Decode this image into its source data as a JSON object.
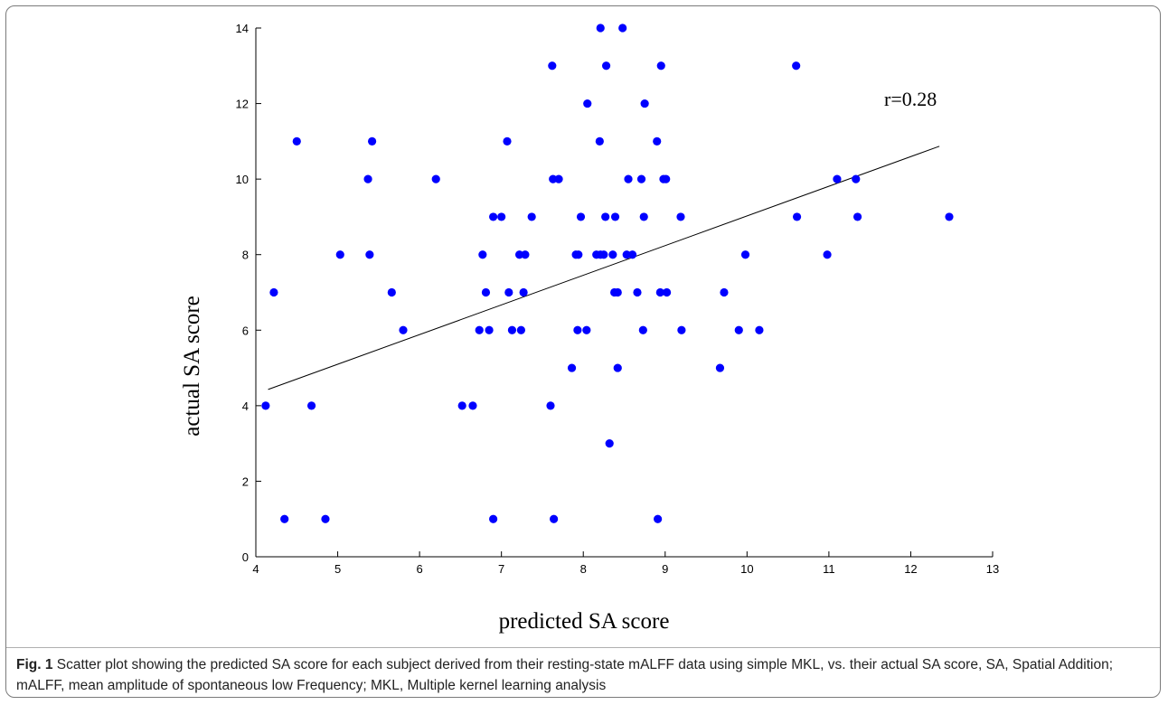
{
  "chart_data": {
    "type": "scatter",
    "xlabel": "predicted SA score",
    "ylabel": "actual SA score",
    "xlim": [
      4,
      13
    ],
    "ylim": [
      0,
      14
    ],
    "xticks": [
      "4",
      "5",
      "6",
      "7",
      "8",
      "9",
      "10",
      "11",
      "12",
      "13"
    ],
    "yticks": [
      "0",
      "2",
      "4",
      "6",
      "8",
      "10",
      "12",
      "14"
    ],
    "annotation": "r=0.28",
    "point_color": "#0000ff",
    "fit_line": {
      "x": [
        4.15,
        12.35
      ],
      "y": [
        4.43,
        10.87
      ]
    },
    "points": [
      [
        4.12,
        4
      ],
      [
        4.22,
        7
      ],
      [
        4.35,
        1
      ],
      [
        4.5,
        11
      ],
      [
        4.68,
        4
      ],
      [
        4.85,
        1
      ],
      [
        5.03,
        8
      ],
      [
        5.37,
        10
      ],
      [
        5.39,
        8
      ],
      [
        5.42,
        11
      ],
      [
        5.66,
        7
      ],
      [
        5.8,
        6
      ],
      [
        6.2,
        10
      ],
      [
        6.52,
        4
      ],
      [
        6.65,
        4
      ],
      [
        6.73,
        6
      ],
      [
        6.77,
        8
      ],
      [
        6.81,
        7
      ],
      [
        6.85,
        6
      ],
      [
        6.9,
        9
      ],
      [
        6.9,
        1
      ],
      [
        7.0,
        9
      ],
      [
        7.07,
        11
      ],
      [
        7.09,
        7
      ],
      [
        7.13,
        6
      ],
      [
        7.22,
        8
      ],
      [
        7.24,
        6
      ],
      [
        7.27,
        7
      ],
      [
        7.29,
        8
      ],
      [
        7.37,
        9
      ],
      [
        7.6,
        4
      ],
      [
        7.62,
        13
      ],
      [
        7.63,
        10
      ],
      [
        7.64,
        1
      ],
      [
        7.7,
        10
      ],
      [
        7.86,
        5
      ],
      [
        7.91,
        8
      ],
      [
        7.93,
        6
      ],
      [
        7.94,
        8
      ],
      [
        7.97,
        9
      ],
      [
        8.04,
        6
      ],
      [
        8.05,
        12
      ],
      [
        8.16,
        8
      ],
      [
        8.2,
        11
      ],
      [
        8.21,
        14
      ],
      [
        8.21,
        8
      ],
      [
        8.25,
        8
      ],
      [
        8.27,
        9
      ],
      [
        8.28,
        13
      ],
      [
        8.32,
        3
      ],
      [
        8.36,
        8
      ],
      [
        8.38,
        7
      ],
      [
        8.39,
        9
      ],
      [
        8.42,
        7
      ],
      [
        8.42,
        5
      ],
      [
        8.48,
        14
      ],
      [
        8.53,
        8
      ],
      [
        8.55,
        10
      ],
      [
        8.6,
        8
      ],
      [
        8.66,
        7
      ],
      [
        8.71,
        10
      ],
      [
        8.73,
        6
      ],
      [
        8.74,
        9
      ],
      [
        8.75,
        12
      ],
      [
        8.9,
        11
      ],
      [
        8.91,
        1
      ],
      [
        8.94,
        7
      ],
      [
        8.95,
        13
      ],
      [
        8.98,
        10
      ],
      [
        9.01,
        10
      ],
      [
        9.02,
        7
      ],
      [
        9.19,
        9
      ],
      [
        9.2,
        6
      ],
      [
        9.67,
        5
      ],
      [
        9.72,
        7
      ],
      [
        9.9,
        6
      ],
      [
        9.98,
        8
      ],
      [
        10.15,
        6
      ],
      [
        10.6,
        13
      ],
      [
        10.61,
        9
      ],
      [
        10.98,
        8
      ],
      [
        11.1,
        10
      ],
      [
        11.33,
        10
      ],
      [
        11.35,
        9
      ],
      [
        12.47,
        9
      ]
    ]
  },
  "caption": {
    "fig_label": "Fig. 1",
    "text": " Scatter plot showing the predicted SA score for each subject derived from their resting-state mALFF data using simple MKL, vs. their actual SA score, SA, Spatial Addition; mALFF, mean amplitude of spontaneous low Frequency; MKL, Multiple kernel learning analysis"
  }
}
